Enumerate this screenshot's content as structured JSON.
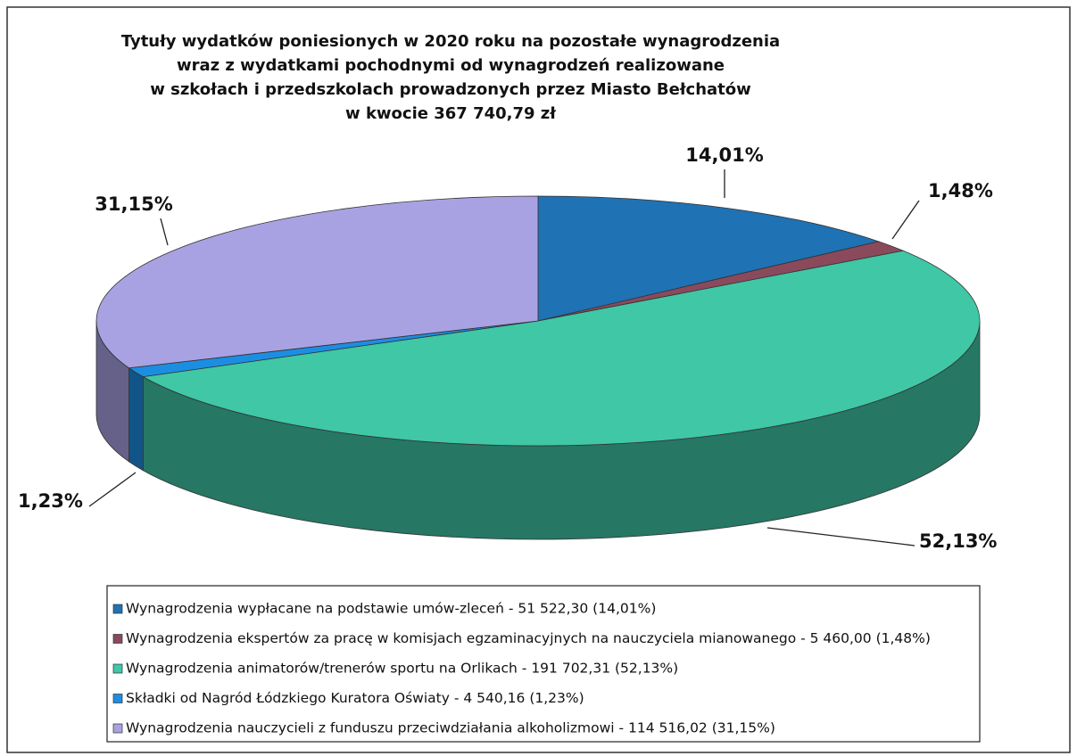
{
  "chart_data": {
    "type": "pie3d",
    "title": [
      "Tytuły wydatków poniesionych w 2020 roku na pozostałe wynagrodzenia",
      "wraz z wydatkami pochodnymi od wynagrodzeń realizowane",
      "w szkołach i przedszkolach prowadzonych przez Miasto Bełchatów",
      "w kwocie 367 740,79 zł"
    ],
    "categories": [
      "Wynagrodzenia wypłacane na podstawie umów-zleceń - 51 522,30 (14,01%)",
      "Wynagrodzenia ekspertów za pracę w komisjach egzaminacyjnych na nauczyciela mianowanego - 5 460,00 (1,48%)",
      "Wynagrodzenia animatorów/trenerów sportu na Orlikach - 191 702,31 (52,13%)",
      "Składki od Nagród Łódzkiego Kuratora Oświaty  - 4 540,16 (1,23%)",
      "Wynagrodzenia nauczycieli z funduszu przeciwdziałania alkoholizmowi - 114 516,02 (31,15%)"
    ],
    "values": [
      14.01,
      1.48,
      52.13,
      1.23,
      31.15
    ],
    "value_labels": [
      "14,01%",
      "1,48%",
      "52,13%",
      "1,23%",
      "31,15%"
    ],
    "colors": [
      "#1f72b4",
      "#8a4a5c",
      "#3fc7a6",
      "#1c8ee2",
      "#a9a2e2"
    ],
    "legend": "bottom"
  }
}
